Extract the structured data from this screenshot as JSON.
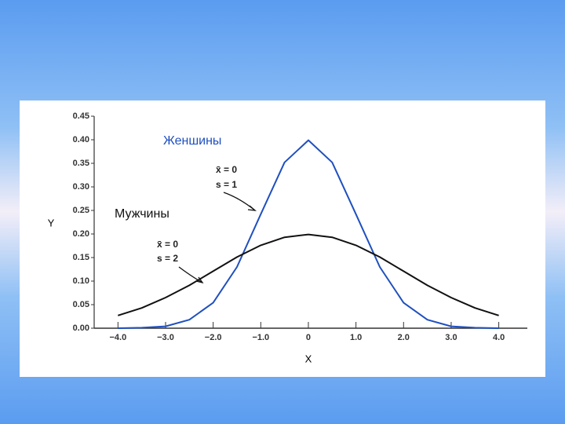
{
  "chart_data": {
    "type": "line",
    "x": [
      -4.0,
      -3.5,
      -3.0,
      -2.5,
      -2.0,
      -1.5,
      -1.0,
      -0.5,
      0.0,
      0.5,
      1.0,
      1.5,
      2.0,
      2.5,
      3.0,
      3.5,
      4.0
    ],
    "series": [
      {
        "name": "Женшины",
        "color": "#1f4fbf",
        "values": [
          0.0,
          0.001,
          0.004,
          0.018,
          0.054,
          0.13,
          0.242,
          0.352,
          0.399,
          0.352,
          0.242,
          0.13,
          0.054,
          0.018,
          0.004,
          0.001,
          0.0
        ]
      },
      {
        "name": "Мужчины",
        "color": "#111111",
        "values": [
          0.027,
          0.043,
          0.065,
          0.091,
          0.121,
          0.151,
          0.176,
          0.193,
          0.199,
          0.193,
          0.176,
          0.151,
          0.121,
          0.091,
          0.065,
          0.043,
          0.027
        ]
      }
    ],
    "annotations": [
      "x̄ = 0",
      "s = 1",
      "x̄ = 0",
      "s = 2"
    ],
    "xlabel": "X",
    "ylabel": "Y",
    "xlim": [
      -4.5,
      4.6
    ],
    "ylim": [
      0,
      0.45
    ],
    "xticks": [
      {
        "value": -4,
        "label": "−4.0"
      },
      {
        "value": -3,
        "label": "−3.0"
      },
      {
        "value": -2,
        "label": "−2.0"
      },
      {
        "value": -1,
        "label": "−1.0"
      },
      0,
      {
        "value": 1,
        "label": "1.0"
      },
      {
        "value": 2,
        "label": "2.0"
      },
      {
        "value": 3,
        "label": "3.0"
      },
      {
        "value": 4,
        "label": "4.0"
      }
    ],
    "yticks": [
      {
        "value": 0,
        "label": "0.00"
      },
      {
        "value": 0.05,
        "label": "0.05"
      },
      {
        "value": 0.1,
        "label": "0.10"
      },
      {
        "value": 0.15,
        "label": "0.15"
      },
      {
        "value": 0.2,
        "label": "0.20"
      },
      {
        "value": 0.25,
        "label": "0.25"
      },
      {
        "value": 0.3,
        "label": "0.30"
      },
      {
        "value": 0.35,
        "label": "0.35"
      },
      {
        "value": 0.4,
        "label": "0.40"
      },
      {
        "value": 0.45,
        "label": "0.45"
      }
    ]
  }
}
